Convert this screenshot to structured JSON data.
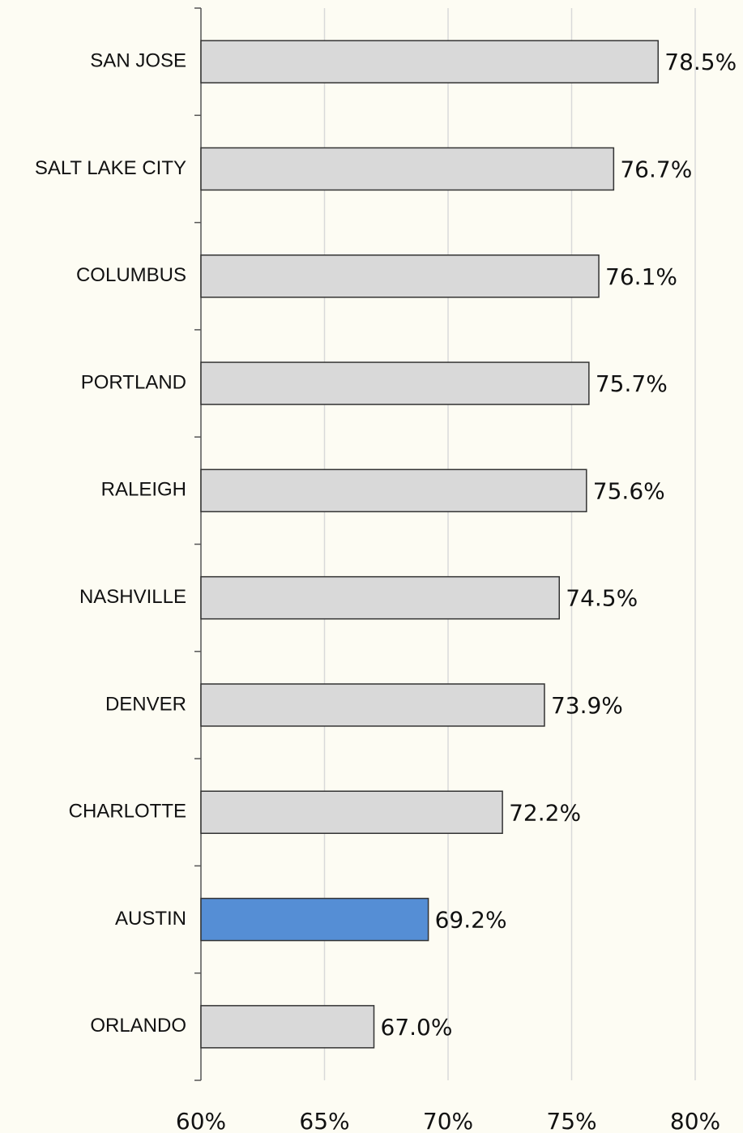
{
  "chart_data": {
    "type": "bar",
    "orientation": "horizontal",
    "categories": [
      "SAN JOSE",
      "SALT LAKE CITY",
      "COLUMBUS",
      "PORTLAND",
      "RALEIGH",
      "NASHVILLE",
      "DENVER",
      "CHARLOTTE",
      "AUSTIN",
      "ORLANDO"
    ],
    "values": [
      78.5,
      76.7,
      76.1,
      75.7,
      75.6,
      74.5,
      73.9,
      72.2,
      69.2,
      67.0
    ],
    "value_labels": [
      "78.5%",
      "76.7%",
      "76.1%",
      "75.7%",
      "75.6%",
      "74.5%",
      "73.9%",
      "72.2%",
      "69.2%",
      "67.0%"
    ],
    "colors": [
      "#d9d9d9",
      "#d9d9d9",
      "#d9d9d9",
      "#d9d9d9",
      "#d9d9d9",
      "#d9d9d9",
      "#d9d9d9",
      "#d9d9d9",
      "#558ed5",
      "#d9d9d9"
    ],
    "xlim": [
      60,
      80
    ],
    "xticks": [
      {
        "value": 60,
        "label": "60%"
      },
      {
        "value": 65,
        "label": "65%"
      },
      {
        "value": 70,
        "label": "70%"
      },
      {
        "value": 75,
        "label": "75%"
      },
      {
        "value": 80,
        "label": "80%"
      }
    ],
    "grid": true
  }
}
